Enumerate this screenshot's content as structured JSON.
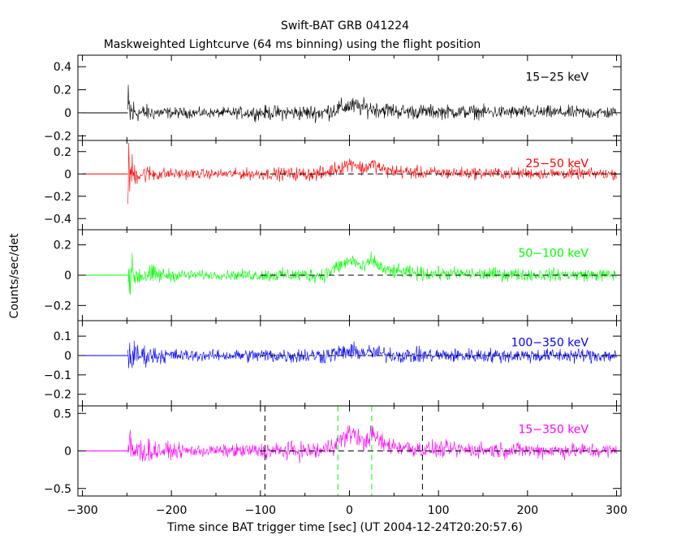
{
  "chart_data": {
    "type": "line",
    "title": "Swift-BAT GRB 041224",
    "subtitle": "Maskweighted Lightcurve (64 ms binning) using the flight position",
    "xlabel": "Time since BAT trigger time [sec] (UT 2004-12-24T20:20:57.6)",
    "ylabel": "Counts/sec/det",
    "xlim": [
      -305,
      305
    ],
    "xticks": [
      -300,
      -200,
      -100,
      0,
      100,
      200,
      300
    ],
    "data_start": -249,
    "panels": [
      {
        "name": "15-25 keV",
        "label": "15−25 keV",
        "color": "#000000",
        "ylim": [
          -0.24,
          0.5
        ],
        "yticks": [
          -0.2,
          0,
          0.2,
          0.4
        ],
        "ytick_labels": [
          "−0.2",
          "0",
          "0.2",
          "0.4"
        ],
        "show_zero_line": false,
        "envelope": [
          [
            -249,
            0.45
          ],
          [
            -240,
            0.12
          ],
          [
            -200,
            0.07
          ],
          [
            -150,
            0.06
          ],
          [
            -100,
            0.09
          ],
          [
            -50,
            0.1
          ],
          [
            0,
            0.12
          ],
          [
            50,
            0.1
          ],
          [
            100,
            0.09
          ],
          [
            300,
            0.08
          ]
        ],
        "signal": [
          [
            -249,
            0.0
          ],
          [
            -30,
            0.0
          ],
          [
            0,
            0.06
          ],
          [
            20,
            0.04
          ],
          [
            60,
            0.01
          ],
          [
            300,
            0.0
          ]
        ]
      },
      {
        "name": "25-50 keV",
        "label": "25−50 keV",
        "color": "#ff0000",
        "ylim": [
          -0.5,
          0.3
        ],
        "yticks": [
          -0.4,
          -0.2,
          0,
          0.2
        ],
        "ytick_labels": [
          "−0.4",
          "−0.2",
          "0",
          "0.2"
        ],
        "show_zero_line": true,
        "envelope": [
          [
            -249,
            0.45
          ],
          [
            -240,
            0.14
          ],
          [
            -200,
            0.07
          ],
          [
            -150,
            0.06
          ],
          [
            -100,
            0.08
          ],
          [
            -50,
            0.09
          ],
          [
            0,
            0.1
          ],
          [
            50,
            0.09
          ],
          [
            100,
            0.08
          ],
          [
            300,
            0.07
          ]
        ],
        "signal": [
          [
            -249,
            0.0
          ],
          [
            -30,
            0.0
          ],
          [
            -5,
            0.08
          ],
          [
            5,
            0.1
          ],
          [
            15,
            0.04
          ],
          [
            25,
            0.09
          ],
          [
            40,
            0.03
          ],
          [
            80,
            0.01
          ],
          [
            300,
            0.0
          ]
        ]
      },
      {
        "name": "50-100 keV",
        "label": "50−100 keV",
        "color": "#00ff00",
        "ylim": [
          -0.3,
          0.3
        ],
        "yticks": [
          -0.2,
          0,
          0.2
        ],
        "ytick_labels": [
          "−0.2",
          "0",
          "0.2"
        ],
        "show_zero_line": true,
        "envelope": [
          [
            -249,
            0.26
          ],
          [
            -240,
            0.13
          ],
          [
            -200,
            0.06
          ],
          [
            -150,
            0.04
          ],
          [
            -100,
            0.06
          ],
          [
            -50,
            0.07
          ],
          [
            0,
            0.08
          ],
          [
            50,
            0.07
          ],
          [
            100,
            0.065
          ],
          [
            300,
            0.06
          ]
        ],
        "signal": [
          [
            -249,
            0.0
          ],
          [
            -30,
            0.0
          ],
          [
            -5,
            0.08
          ],
          [
            5,
            0.1
          ],
          [
            15,
            0.04
          ],
          [
            25,
            0.1
          ],
          [
            40,
            0.03
          ],
          [
            80,
            0.01
          ],
          [
            300,
            0.0
          ]
        ]
      },
      {
        "name": "100-350 keV",
        "label": "100−350 keV",
        "color": "#0000ff",
        "ylim": [
          -0.26,
          0.18
        ],
        "yticks": [
          -0.2,
          -0.1,
          0,
          0.1
        ],
        "ytick_labels": [
          "−0.2",
          "−0.1",
          "0",
          "0.1"
        ],
        "show_zero_line": true,
        "envelope": [
          [
            -249,
            0.2
          ],
          [
            -240,
            0.09
          ],
          [
            -200,
            0.05
          ],
          [
            -150,
            0.04
          ],
          [
            -100,
            0.055
          ],
          [
            -50,
            0.06
          ],
          [
            0,
            0.065
          ],
          [
            50,
            0.06
          ],
          [
            100,
            0.055
          ],
          [
            300,
            0.055
          ]
        ],
        "signal": [
          [
            -249,
            0.0
          ],
          [
            -30,
            0.0
          ],
          [
            0,
            0.02
          ],
          [
            20,
            0.015
          ],
          [
            60,
            0.0
          ],
          [
            300,
            0.0
          ]
        ]
      },
      {
        "name": "15-350 keV",
        "label": "15−350 keV",
        "color": "#ff00ff",
        "ylim": [
          -0.6,
          0.6
        ],
        "yticks": [
          -0.5,
          0,
          0.5
        ],
        "ytick_labels": [
          "−0.5",
          "0",
          "0.5"
        ],
        "show_zero_line": true,
        "envelope": [
          [
            -249,
            0.55
          ],
          [
            -240,
            0.28
          ],
          [
            -200,
            0.14
          ],
          [
            -150,
            0.11
          ],
          [
            -100,
            0.16
          ],
          [
            -50,
            0.18
          ],
          [
            0,
            0.2
          ],
          [
            50,
            0.18
          ],
          [
            100,
            0.16
          ],
          [
            300,
            0.15
          ]
        ],
        "signal": [
          [
            -249,
            0.0
          ],
          [
            -30,
            0.0
          ],
          [
            -5,
            0.18
          ],
          [
            5,
            0.25
          ],
          [
            15,
            0.1
          ],
          [
            25,
            0.22
          ],
          [
            40,
            0.08
          ],
          [
            80,
            0.02
          ],
          [
            300,
            0.0
          ]
        ],
        "markers": [
          {
            "x": -95,
            "color": "#000000"
          },
          {
            "x": -13,
            "color": "#00ff00"
          },
          {
            "x": 25,
            "color": "#00ff00"
          },
          {
            "x": 82,
            "color": "#000000"
          }
        ]
      }
    ],
    "zero_line_start": -100,
    "grid": false,
    "legend": "none"
  }
}
